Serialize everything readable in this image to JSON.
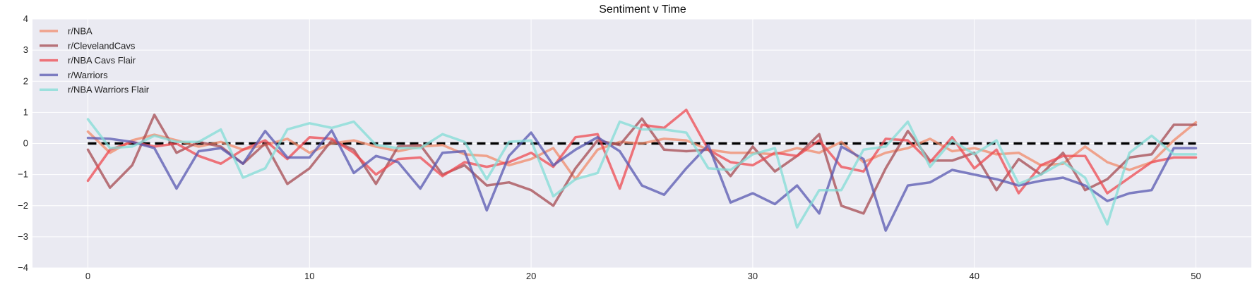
{
  "chart_data": {
    "type": "line",
    "title": "Sentiment v Time",
    "xlabel": "",
    "ylabel": "",
    "xlim": [
      -2.5,
      52.5
    ],
    "ylim": [
      -4,
      4
    ],
    "xticks": [
      0,
      10,
      20,
      30,
      40,
      50
    ],
    "yticks": [
      -4,
      -3,
      -2,
      -1,
      0,
      1,
      2,
      3,
      4
    ],
    "grid": true,
    "legend_position": "top-left",
    "reference_line": {
      "y": 0,
      "style": "dashed",
      "color": "#000000"
    },
    "series": [
      {
        "name": "r/NBA",
        "color": "#f08a6a",
        "values": [
          0.38,
          -0.3,
          0.1,
          0.28,
          0.1,
          -0.1,
          0.05,
          -0.2,
          -0.05,
          0.15,
          -0.3,
          0.0,
          0.1,
          -0.1,
          -0.25,
          -0.1,
          -0.05,
          -0.35,
          -0.4,
          -0.7,
          -0.5,
          -0.15,
          -1.15,
          -0.2,
          0.05,
          0.0,
          0.15,
          0.1,
          -0.2,
          -0.3,
          -0.3,
          -0.35,
          -0.15,
          -0.3,
          0.05,
          -0.6,
          -0.3,
          -0.15,
          0.15,
          -0.25,
          -0.15,
          -0.35,
          -0.3,
          -0.7,
          -0.65,
          -0.1,
          -0.6,
          -0.85,
          -0.6,
          0.1,
          0.68
        ]
      },
      {
        "name": "r/ClevelandCavs",
        "color": "#a54a50",
        "values": [
          -0.2,
          -1.42,
          -0.7,
          0.92,
          -0.3,
          0.05,
          -0.1,
          -0.65,
          0.0,
          -1.3,
          -0.8,
          0.1,
          -0.2,
          -1.3,
          -0.1,
          -0.05,
          -1.0,
          -0.7,
          -1.35,
          -1.25,
          -1.5,
          -2.0,
          -0.8,
          0.1,
          -0.05,
          0.8,
          -0.2,
          -0.25,
          -0.2,
          -1.05,
          -0.1,
          -0.9,
          -0.4,
          0.3,
          -2.0,
          -2.25,
          -0.8,
          0.4,
          -0.55,
          -0.55,
          -0.3,
          -1.5,
          -0.5,
          -1.0,
          -0.3,
          -1.5,
          -1.15,
          -0.45,
          -0.35,
          0.6,
          0.6
        ]
      },
      {
        "name": "r/NBA Cavs Flair",
        "color": "#ee4a50",
        "values": [
          -1.2,
          -0.2,
          0.05,
          -0.1,
          0.0,
          -0.4,
          -0.65,
          -0.2,
          0.1,
          -0.5,
          0.2,
          0.15,
          -0.3,
          -1.0,
          -0.5,
          -0.45,
          -1.05,
          -0.6,
          -0.75,
          -0.6,
          -0.3,
          -0.75,
          0.2,
          0.3,
          -1.45,
          0.6,
          0.5,
          1.08,
          -0.2,
          -0.6,
          -0.7,
          -0.3,
          -0.4,
          0.1,
          -0.75,
          -0.9,
          0.15,
          0.1,
          -0.6,
          0.2,
          -0.8,
          -0.2,
          -1.6,
          -0.7,
          -0.4,
          -0.4,
          -1.6,
          -1.1,
          -0.6,
          -0.45,
          -0.45
        ]
      },
      {
        "name": "r/Warriors",
        "color": "#5757b0",
        "values": [
          0.18,
          0.15,
          0.05,
          -0.15,
          -1.45,
          -0.25,
          -0.15,
          -0.65,
          0.4,
          -0.45,
          -0.45,
          0.42,
          -0.95,
          -0.4,
          -0.6,
          -1.45,
          -0.3,
          -0.25,
          -2.15,
          -0.4,
          0.35,
          -0.7,
          -0.2,
          0.2,
          -0.25,
          -1.35,
          -1.65,
          -0.8,
          -0.05,
          -1.9,
          -1.6,
          -1.95,
          -1.35,
          -2.25,
          -0.1,
          -0.5,
          -2.8,
          -1.35,
          -1.25,
          -0.85,
          -1.0,
          -1.15,
          -1.35,
          -1.2,
          -1.1,
          -1.35,
          -1.85,
          -1.6,
          -1.5,
          -0.15,
          -0.15
        ]
      },
      {
        "name": "r/NBA Warriors Flair",
        "color": "#82dcd6",
        "values": [
          0.78,
          -0.15,
          -0.1,
          0.25,
          0.05,
          0.05,
          0.45,
          -1.1,
          -0.8,
          0.45,
          0.65,
          0.5,
          0.7,
          -0.05,
          -0.15,
          -0.15,
          0.3,
          0.05,
          -1.15,
          0.05,
          0.1,
          -1.7,
          -1.15,
          -0.95,
          0.7,
          0.45,
          0.45,
          0.35,
          -0.8,
          -0.85,
          -0.35,
          -0.15,
          -2.7,
          -1.5,
          -1.5,
          -0.2,
          -0.1,
          0.7,
          -0.75,
          0.1,
          -0.35,
          0.1,
          -1.3,
          -1.0,
          -0.6,
          -1.1,
          -2.6,
          -0.3,
          0.25,
          -0.35,
          -0.35
        ]
      }
    ]
  }
}
